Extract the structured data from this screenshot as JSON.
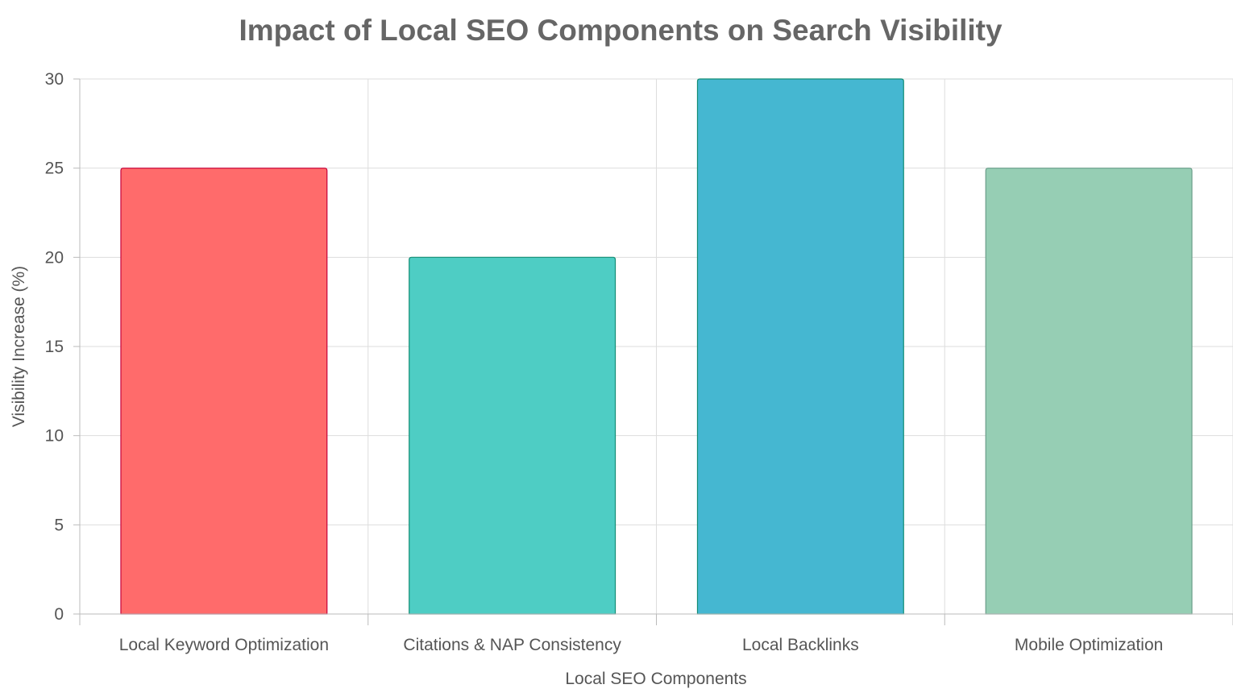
{
  "chart_data": {
    "type": "bar",
    "title": "Impact of Local SEO Components on Search Visibility",
    "xlabel": "Local SEO Components",
    "ylabel": "Visibility Increase (%)",
    "categories": [
      "Local Keyword Optimization",
      "Citations & NAP Consistency",
      "Local Backlinks",
      "Mobile Optimization"
    ],
    "values": [
      25,
      20,
      30,
      25
    ],
    "ylim": [
      0,
      30
    ],
    "yticks": [
      0,
      5,
      10,
      15,
      20,
      25,
      30
    ],
    "grid": true,
    "colors": [
      "#FF6B6B",
      "#4ECDC4",
      "#45B7D1",
      "#96CEB4"
    ],
    "edge_colors": [
      "#C70039",
      "#138D75",
      "#138D75",
      "#6B9E8A"
    ]
  }
}
